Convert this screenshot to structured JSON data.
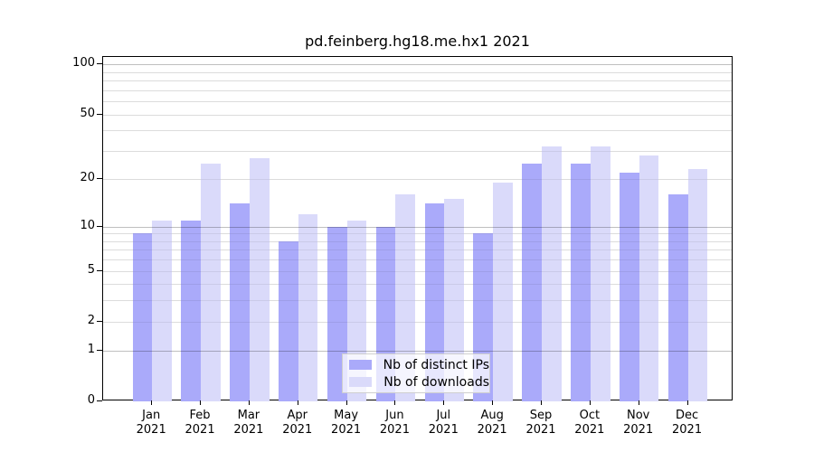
{
  "chart_data": {
    "type": "bar",
    "title": "pd.feinberg.hg18.me.hx1 2021",
    "categories": [
      "Jan",
      "Feb",
      "Mar",
      "Apr",
      "May",
      "Jun",
      "Jul",
      "Aug",
      "Sep",
      "Oct",
      "Nov",
      "Dec"
    ],
    "year_label": "2021",
    "series": [
      {
        "name": "Nb of distinct IPs",
        "color": "#aaaafa",
        "values": [
          9,
          11,
          14,
          8,
          10,
          10,
          14,
          9,
          25,
          25,
          22,
          16
        ]
      },
      {
        "name": "Nb of downloads",
        "color": "#dadafa",
        "values": [
          11,
          25,
          27,
          12,
          11,
          16,
          15,
          19,
          32,
          32,
          28,
          23
        ]
      }
    ],
    "y_axis": {
      "scale": "log10(value+1)",
      "tick_labels": [
        "100",
        "50",
        "20",
        "10",
        "5",
        "2",
        "1",
        "0"
      ],
      "tick_values": [
        100,
        50,
        20,
        10,
        5,
        2,
        1,
        0
      ],
      "major_gridlines": [
        100,
        10,
        1
      ],
      "minor_gridlines": [
        2,
        3,
        4,
        5,
        6,
        7,
        8,
        9,
        20,
        30,
        40,
        50,
        60,
        70,
        80,
        90
      ],
      "range_top": 110
    },
    "legend_position": "bottom-center",
    "grid": true,
    "colors": {
      "major_grid": "rgba(0,0,0,0.25)",
      "minor_grid": "rgba(0,0,0,0.07)",
      "axis": "#000000",
      "background": "#ffffff"
    }
  }
}
